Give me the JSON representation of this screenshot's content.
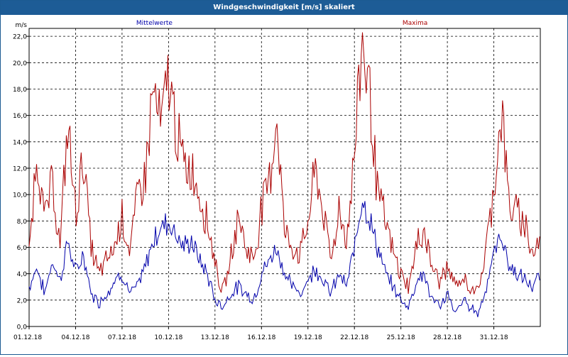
{
  "window": {
    "title": "Windgeschwindigkeit [m/s] skaliert"
  },
  "chart_data": {
    "type": "line",
    "title": "Windgeschwindigkeit [m/s] skaliert",
    "ylabel": "m/s",
    "xlabel": "",
    "ylim": [
      0,
      22.6
    ],
    "xlim": [
      0,
      33
    ],
    "grid": true,
    "legend": "top",
    "yticks": [
      0,
      2,
      4,
      6,
      8,
      10,
      12,
      14,
      16,
      18,
      20,
      22
    ],
    "ytick_labels": [
      "0,0",
      "2,0",
      "4,0",
      "6,0",
      "8,0",
      "10,0",
      "12,0",
      "14,0",
      "16,0",
      "18,0",
      "20,0",
      "22,0"
    ],
    "xticks": [
      0,
      3,
      6,
      9,
      12,
      15,
      18,
      21,
      24,
      27,
      30
    ],
    "xtick_labels": [
      "01.12.18",
      "04.12.18",
      "07.12.18",
      "10.12.18",
      "13.12.18",
      "16.12.18",
      "19.12.18",
      "22.12.18",
      "25.12.18",
      "28.12.18",
      "31.12.18"
    ],
    "series": [
      {
        "name": "Mittelwerte",
        "color": "#0000aa",
        "x": [
          0,
          0.5,
          1,
          1.5,
          2,
          2.5,
          3,
          3.5,
          4,
          4.5,
          5,
          5.5,
          6,
          6.5,
          7,
          7.5,
          8,
          8.5,
          9,
          9.5,
          10,
          10.5,
          11,
          11.5,
          12,
          12.5,
          13,
          13.5,
          14,
          14.5,
          15,
          15.5,
          16,
          16.5,
          17,
          17.5,
          18,
          18.5,
          19,
          19.5,
          20,
          20.5,
          21,
          21.5,
          22,
          22.5,
          23,
          23.5,
          24,
          24.5,
          25,
          25.5,
          26,
          26.5,
          27,
          27.5,
          28,
          28.5,
          29,
          29.5,
          30,
          30.5,
          31,
          31.5,
          32,
          32.5,
          33
        ],
        "values": [
          3.0,
          4.5,
          2.5,
          5.0,
          3.5,
          6.5,
          4.0,
          5.5,
          2.5,
          1.8,
          2.5,
          3.5,
          4.0,
          2.5,
          3.0,
          4.5,
          6.5,
          7.5,
          8.0,
          7.0,
          6.0,
          6.5,
          5.0,
          4.0,
          2.0,
          1.5,
          2.5,
          3.0,
          2.5,
          2.0,
          4.0,
          5.0,
          6.0,
          4.0,
          3.0,
          2.5,
          3.5,
          4.5,
          3.5,
          2.5,
          4.0,
          3.0,
          6.0,
          10.0,
          8.0,
          6.0,
          4.0,
          3.0,
          2.0,
          1.5,
          3.5,
          4.0,
          2.0,
          1.5,
          2.5,
          1.0,
          2.0,
          1.5,
          1.0,
          3.0,
          5.5,
          7.0,
          4.5,
          4.0,
          3.5,
          3.0,
          3.8
        ]
      },
      {
        "name": "Maxima",
        "color": "#aa0000",
        "x": [
          0,
          0.5,
          1,
          1.5,
          2,
          2.5,
          3,
          3.5,
          4,
          4.5,
          5,
          5.5,
          6,
          6.5,
          7,
          7.5,
          8,
          8.5,
          9,
          9.5,
          10,
          10.5,
          11,
          11.5,
          12,
          12.5,
          13,
          13.5,
          14,
          14.5,
          15,
          15.5,
          16,
          16.5,
          17,
          17.5,
          18,
          18.5,
          19,
          19.5,
          20,
          20.5,
          21,
          21.5,
          22,
          22.5,
          23,
          23.5,
          24,
          24.5,
          25,
          25.5,
          26,
          26.5,
          27,
          27.5,
          28,
          28.5,
          29,
          29.5,
          30,
          30.5,
          31,
          31.5,
          32,
          32.5,
          33
        ],
        "values": [
          5.5,
          13.5,
          8.0,
          11.0,
          6.0,
          15.5,
          8.5,
          13.0,
          6.0,
          4.0,
          5.0,
          6.0,
          8.5,
          5.5,
          10.0,
          11.5,
          18.0,
          15.0,
          19.0,
          15.0,
          12.0,
          12.0,
          10.0,
          8.0,
          5.0,
          2.5,
          5.0,
          8.5,
          6.0,
          5.0,
          9.0,
          11.0,
          16.0,
          7.0,
          6.0,
          5.5,
          8.0,
          12.0,
          8.5,
          5.0,
          9.0,
          6.5,
          13.0,
          22.0,
          17.5,
          10.0,
          8.0,
          5.5,
          4.0,
          3.0,
          6.0,
          7.5,
          4.5,
          3.5,
          4.5,
          3.0,
          3.5,
          3.0,
          2.5,
          6.0,
          10.5,
          16.5,
          9.0,
          8.5,
          8.0,
          5.5,
          6.5
        ]
      }
    ]
  }
}
